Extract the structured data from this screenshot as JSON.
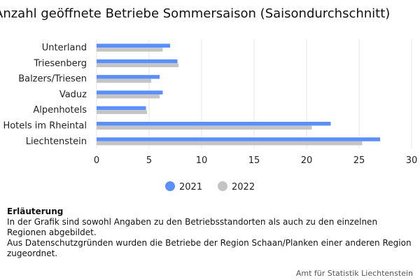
{
  "chart_data": {
    "type": "bar",
    "orientation": "horizontal",
    "title": "Anzahl geöffnete Betriebe Sommersaison (Saisondurchschnitt)",
    "categories": [
      "Unterland",
      "Triesenberg",
      "Balzers/Triesen",
      "Vaduz",
      "Alpenhotels",
      "Hotels im Rheintal",
      "Liechtenstein"
    ],
    "series": [
      {
        "name": "2021",
        "color": "#5b8ff9",
        "values": [
          7.0,
          7.7,
          6.0,
          6.3,
          4.7,
          22.3,
          27.0
        ]
      },
      {
        "name": "2022",
        "color": "#c4c4c4",
        "values": [
          6.3,
          7.8,
          5.2,
          6.0,
          4.8,
          20.5,
          25.3
        ]
      }
    ],
    "xlim": [
      0,
      30
    ],
    "xticks": [
      "0",
      "5",
      "10",
      "15",
      "20",
      "25",
      "30"
    ],
    "grid": true,
    "legend_position": "bottom"
  },
  "notes": {
    "heading": "Erläuterung",
    "lines": [
      "In der Grafik sind sowohl Angaben zu den Betriebsstandorten als auch zu den einzelnen Regionen abgebildet.",
      "Aus Datenschutzgründen wurden die Betriebe der Region Schaan/Planken einer anderen Region zugeordnet."
    ]
  },
  "source": "Amt für Statistik Liechtenstein"
}
